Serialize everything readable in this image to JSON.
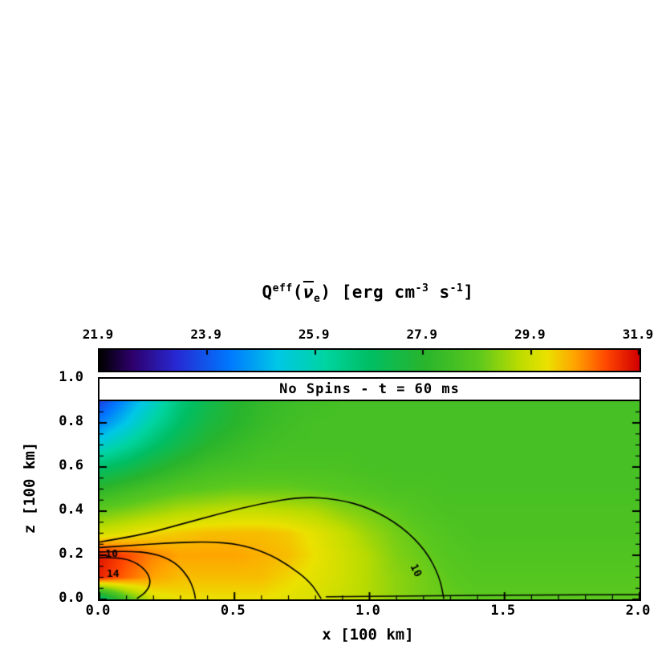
{
  "figure": {
    "title_segments": [
      {
        "text": "Q",
        "style": "b"
      },
      {
        "text": "eff",
        "style": "sup"
      },
      {
        "text": "(",
        "style": "b"
      },
      {
        "text": "ν",
        "style": "nubar"
      },
      {
        "text": "e",
        "style": "sub"
      },
      {
        "text": ") [erg cm",
        "style": "b"
      },
      {
        "text": "-3",
        "style": "sup"
      },
      {
        "text": " s",
        "style": "b"
      },
      {
        "text": "-1",
        "style": "sup"
      },
      {
        "text": "]",
        "style": "b"
      }
    ],
    "annotation": "No Spins - t = 60 ms",
    "xlabel": "x [100 km]",
    "ylabel": "z [100 km]"
  },
  "chart_data": {
    "type": "heatmap",
    "title": "Q^eff(ν̄_e) [erg cm^-3 s^-1]",
    "annotation": "No Spins - t = 60 ms",
    "xlabel": "x [100 km]",
    "ylabel": "z [100 km]",
    "x_range": [
      0.0,
      2.0
    ],
    "z_range": [
      0.0,
      1.0
    ],
    "x_ticks": [
      {
        "value": 0.0,
        "label": "0.0"
      },
      {
        "value": 0.5,
        "label": "0.5"
      },
      {
        "value": 1.0,
        "label": "1.0"
      },
      {
        "value": 1.5,
        "label": "1.5"
      },
      {
        "value": 2.0,
        "label": "2.0"
      }
    ],
    "x_minor_step": 0.1,
    "y_ticks": [
      {
        "value": 0.0,
        "label": "0.0"
      },
      {
        "value": 0.2,
        "label": "0.2"
      },
      {
        "value": 0.4,
        "label": "0.4"
      },
      {
        "value": 0.6,
        "label": "0.6"
      },
      {
        "value": 0.8,
        "label": "0.8"
      },
      {
        "value": 1.0,
        "label": "1.0"
      }
    ],
    "y_minor_step": 0.05,
    "colorbar": {
      "min": 21.9,
      "max": 31.9,
      "ticks": [
        {
          "value": 21.9,
          "label": "21.9"
        },
        {
          "value": 23.9,
          "label": "23.9"
        },
        {
          "value": 25.9,
          "label": "25.9"
        },
        {
          "value": 27.9,
          "label": "27.9"
        },
        {
          "value": 29.9,
          "label": "29.9"
        },
        {
          "value": 31.9,
          "label": "31.9"
        }
      ]
    },
    "colormap_stops": [
      [
        0.0,
        [
          0,
          0,
          0
        ]
      ],
      [
        0.06,
        [
          46,
          0,
          108
        ]
      ],
      [
        0.14,
        [
          40,
          40,
          210
        ]
      ],
      [
        0.24,
        [
          0,
          120,
          255
        ]
      ],
      [
        0.33,
        [
          0,
          200,
          230
        ]
      ],
      [
        0.42,
        [
          0,
          212,
          160
        ]
      ],
      [
        0.5,
        [
          0,
          190,
          100
        ]
      ],
      [
        0.6,
        [
          40,
          180,
          45
        ]
      ],
      [
        0.7,
        [
          90,
          200,
          30
        ]
      ],
      [
        0.78,
        [
          190,
          220,
          0
        ]
      ],
      [
        0.83,
        [
          235,
          225,
          0
        ]
      ],
      [
        0.88,
        [
          255,
          165,
          0
        ]
      ],
      [
        0.94,
        [
          255,
          70,
          0
        ]
      ],
      [
        1.0,
        [
          210,
          0,
          0
        ]
      ]
    ],
    "grid": {
      "x0": 0.0,
      "x1": 2.0,
      "z_bottom": 0.0,
      "z_top": 0.9,
      "note": "log10 Q values, rows from z=0.9 (top) down to z=0.0, cols x=0.0..2.0 step 0.1",
      "values": [
        [
          23.6,
          24.6,
          25.6,
          26.6,
          27.3,
          27.8,
          28.1,
          28.3,
          28.4,
          28.5,
          28.5,
          28.5,
          28.5,
          28.5,
          28.5,
          28.5,
          28.5,
          28.5,
          28.5,
          28.5,
          28.5
        ],
        [
          24.4,
          25.2,
          26.1,
          26.9,
          27.5,
          27.9,
          28.2,
          28.4,
          28.5,
          28.5,
          28.5,
          28.5,
          28.5,
          28.5,
          28.5,
          28.5,
          28.5,
          28.5,
          28.5,
          28.5,
          28.5
        ],
        [
          25.5,
          26.1,
          26.8,
          27.4,
          27.9,
          28.2,
          28.4,
          28.5,
          28.5,
          28.5,
          28.5,
          28.5,
          28.5,
          28.5,
          28.5,
          28.5,
          28.5,
          28.5,
          28.5,
          28.5,
          28.5
        ],
        [
          26.8,
          27.2,
          27.7,
          28.1,
          28.4,
          28.5,
          28.6,
          28.6,
          28.6,
          28.6,
          28.5,
          28.5,
          28.5,
          28.5,
          28.5,
          28.5,
          28.5,
          28.5,
          28.5,
          28.5,
          28.5
        ],
        [
          28.0,
          28.3,
          28.6,
          28.8,
          28.9,
          29.0,
          29.0,
          29.0,
          28.9,
          28.8,
          28.7,
          28.6,
          28.6,
          28.5,
          28.5,
          28.5,
          28.5,
          28.5,
          28.5,
          28.5,
          28.5
        ],
        [
          29.0,
          29.2,
          29.4,
          29.6,
          29.7,
          29.8,
          29.8,
          29.7,
          29.6,
          29.3,
          29.1,
          28.9,
          28.7,
          28.6,
          28.6,
          28.6,
          28.6,
          28.6,
          28.6,
          28.6,
          28.6
        ],
        [
          29.9,
          30.1,
          30.3,
          30.4,
          30.5,
          30.5,
          30.5,
          30.4,
          30.1,
          29.8,
          29.4,
          29.1,
          28.9,
          28.7,
          28.6,
          28.6,
          28.6,
          28.6,
          28.6,
          28.6,
          28.6
        ],
        [
          31.7,
          31.3,
          30.9,
          30.7,
          30.7,
          30.7,
          30.6,
          30.5,
          30.2,
          29.9,
          29.6,
          29.2,
          29.0,
          28.8,
          28.7,
          28.7,
          28.7,
          28.7,
          28.7,
          28.7,
          28.7
        ],
        [
          31.6,
          31.1,
          30.7,
          30.5,
          30.5,
          30.5,
          30.5,
          30.3,
          30.1,
          29.9,
          29.6,
          29.3,
          29.1,
          28.9,
          28.8,
          28.8,
          28.8,
          28.8,
          28.8,
          28.8,
          28.8
        ],
        [
          26.5,
          28.6,
          30.0,
          30.2,
          30.2,
          30.2,
          30.2,
          30.1,
          30.0,
          29.8,
          29.6,
          29.3,
          29.1,
          29.0,
          28.9,
          28.9,
          28.9,
          28.9,
          28.9,
          28.9,
          28.9
        ]
      ]
    },
    "contours": [
      {
        "label": "10",
        "paths": [
          [
            [
              0.0,
              0.26
            ],
            [
              0.15,
              0.29
            ],
            [
              0.3,
              0.34
            ],
            [
              0.45,
              0.39
            ],
            [
              0.6,
              0.435
            ],
            [
              0.75,
              0.465
            ],
            [
              0.88,
              0.455
            ],
            [
              1.0,
              0.415
            ],
            [
              1.12,
              0.33
            ],
            [
              1.21,
              0.22
            ],
            [
              1.26,
              0.1
            ],
            [
              1.275,
              0.005
            ]
          ],
          [
            [
              0.84,
              0.012
            ],
            [
              1.2,
              0.016
            ],
            [
              1.6,
              0.02
            ],
            [
              2.0,
              0.022
            ]
          ]
        ],
        "label_positions": [
          {
            "text": "10",
            "x": 1.17,
            "z": 0.13,
            "angle": 65
          },
          {
            "text": "10",
            "x": 0.045,
            "z": 0.205,
            "angle": 0
          }
        ]
      },
      {
        "label": "",
        "paths": [
          [
            [
              0.0,
              0.235
            ],
            [
              0.12,
              0.245
            ],
            [
              0.25,
              0.255
            ],
            [
              0.4,
              0.262
            ],
            [
              0.52,
              0.25
            ],
            [
              0.62,
              0.21
            ],
            [
              0.7,
              0.155
            ],
            [
              0.78,
              0.08
            ],
            [
              0.82,
              0.005
            ]
          ]
        ],
        "label_positions": []
      },
      {
        "label": "",
        "paths": [
          [
            [
              0.0,
              0.215
            ],
            [
              0.1,
              0.22
            ],
            [
              0.2,
              0.21
            ],
            [
              0.28,
              0.17
            ],
            [
              0.33,
              0.1
            ],
            [
              0.35,
              0.04
            ],
            [
              0.355,
              0.005
            ]
          ]
        ],
        "label_positions": []
      },
      {
        "label": "14",
        "paths": [
          [
            [
              0.0,
              0.19
            ],
            [
              0.08,
              0.19
            ],
            [
              0.14,
              0.165
            ],
            [
              0.18,
              0.12
            ],
            [
              0.19,
              0.07
            ],
            [
              0.17,
              0.03
            ],
            [
              0.14,
              0.005
            ]
          ]
        ],
        "label_positions": [
          {
            "text": "14",
            "x": 0.05,
            "z": 0.115,
            "angle": 0
          }
        ]
      }
    ]
  }
}
